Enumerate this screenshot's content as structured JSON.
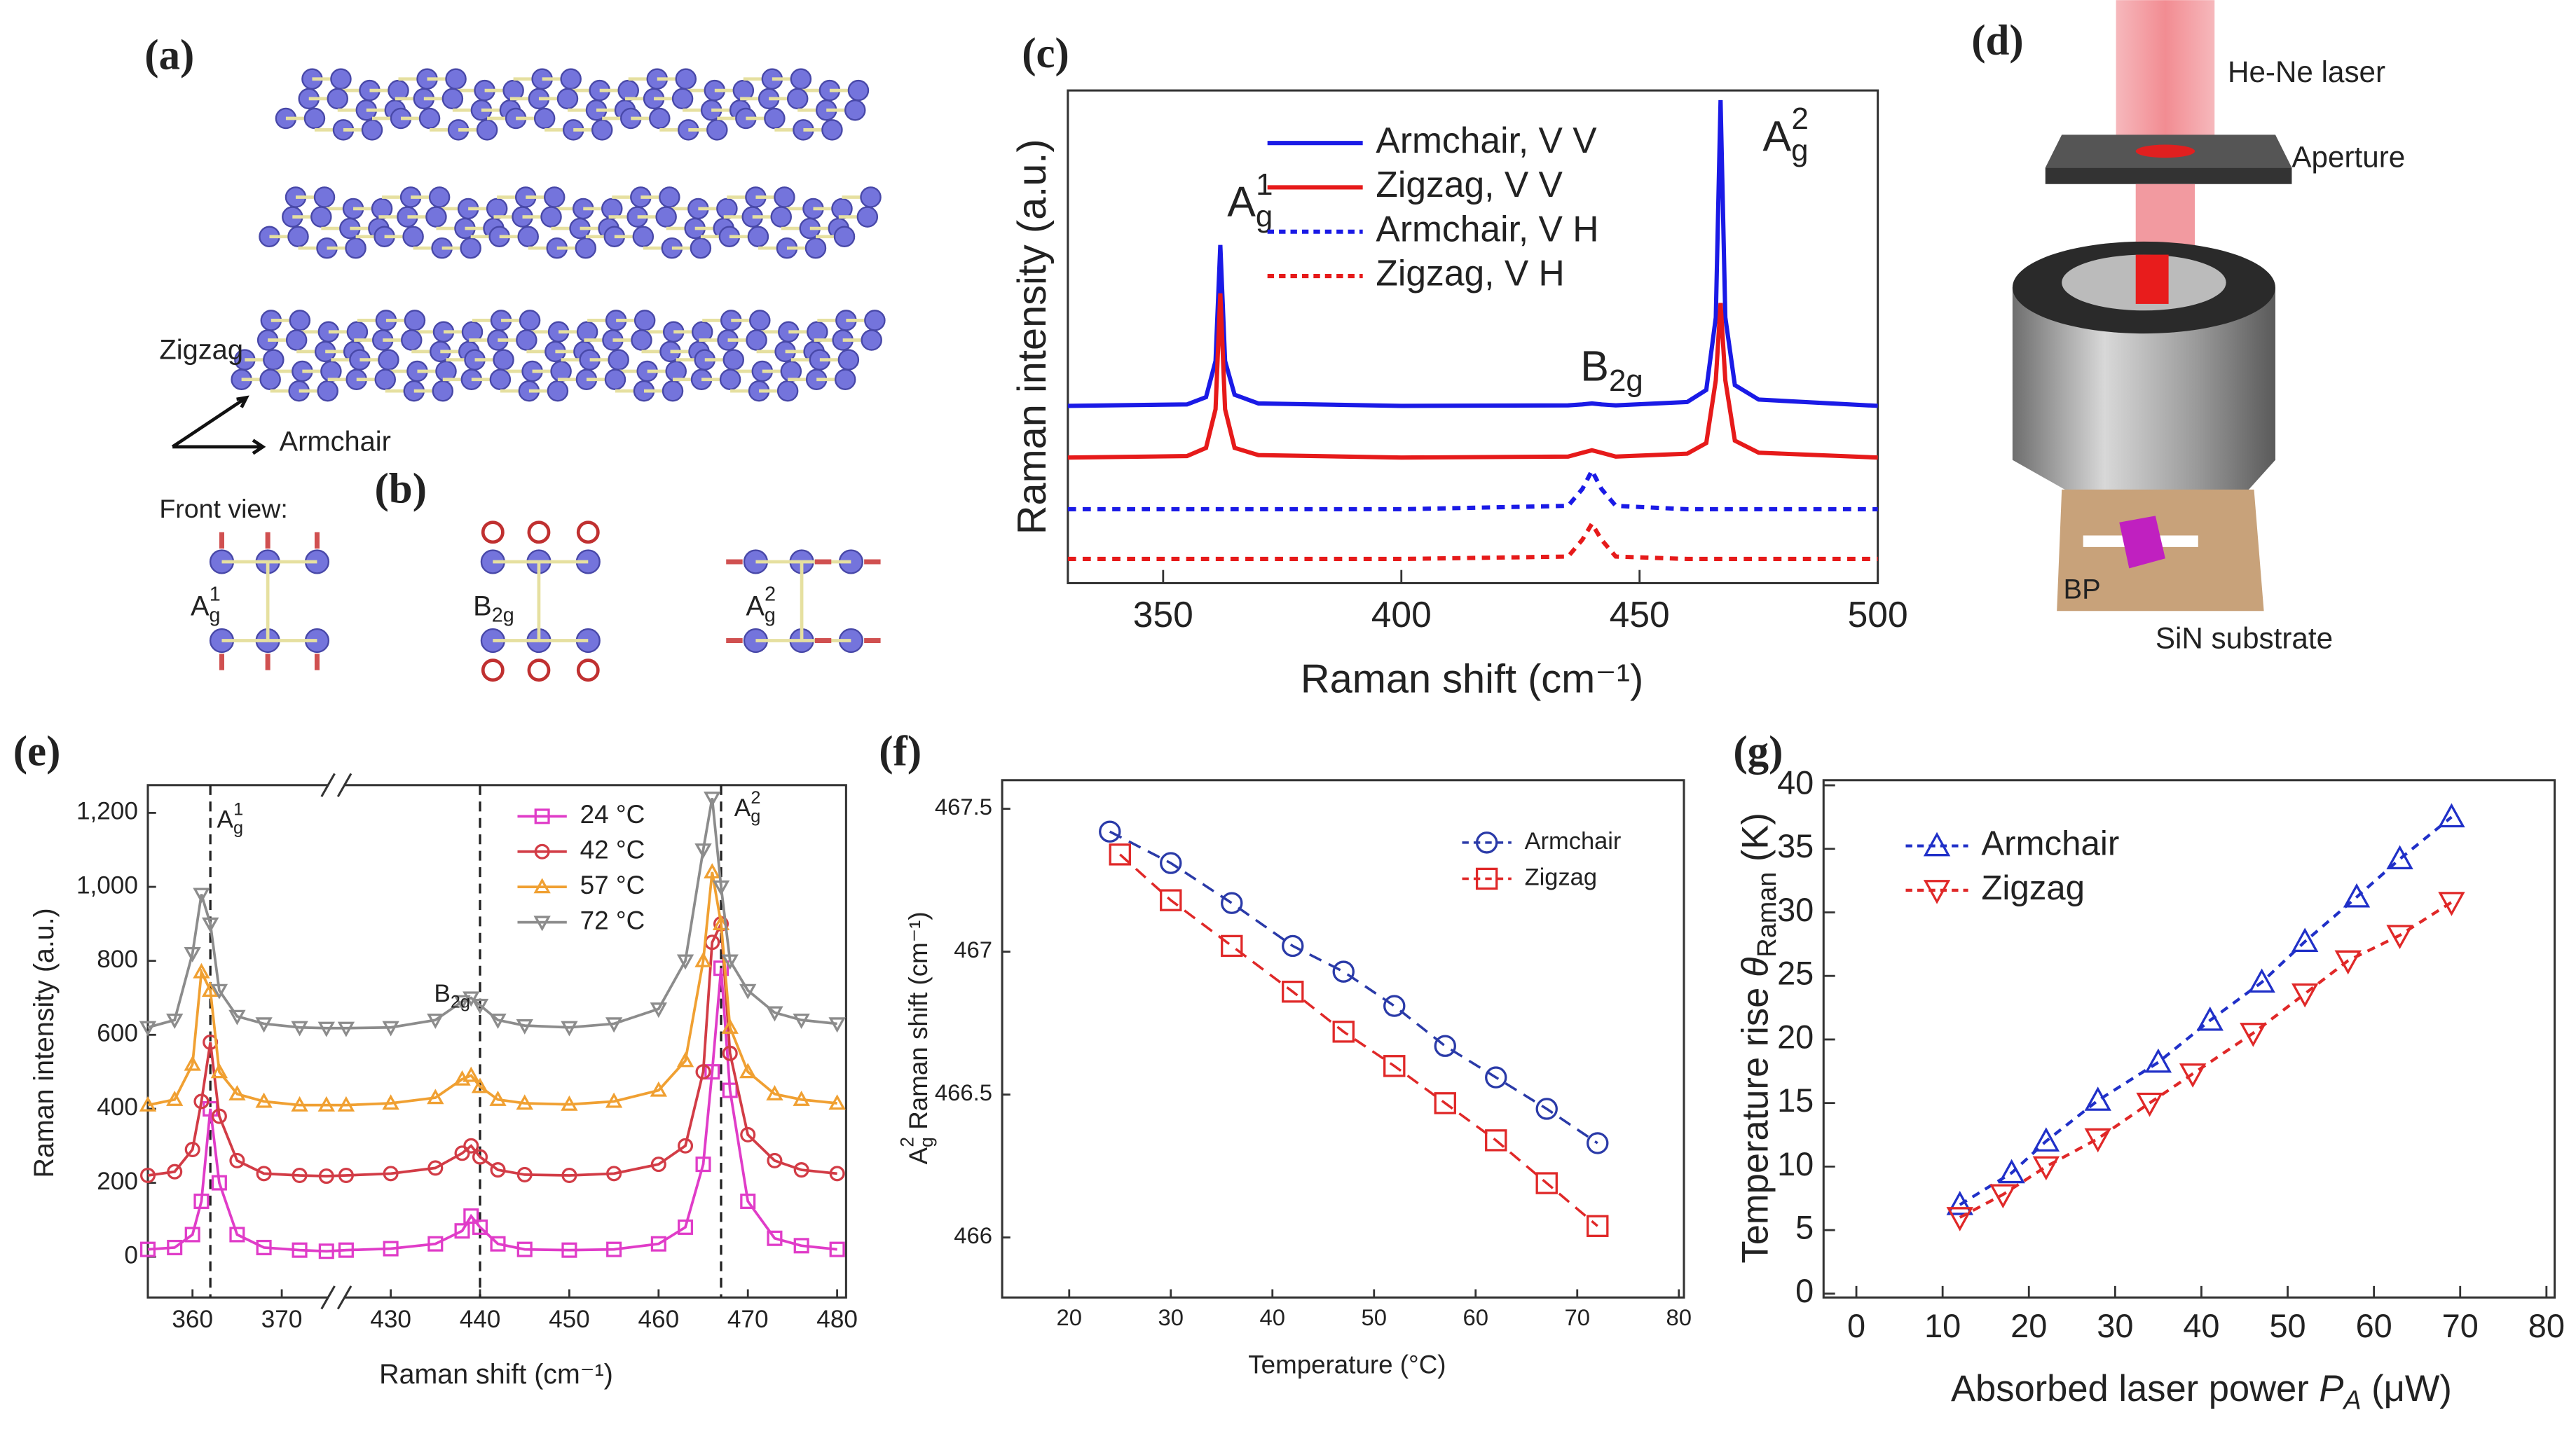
{
  "diagrams": {
    "a": {
      "label": "(a)",
      "zigzag": "Zigzag",
      "armchair": "Armchair"
    },
    "b": {
      "label": "(b)",
      "front_view": "Front view:",
      "modes": [
        [
          {
            "text": "A"
          },
          {
            "text": "g",
            "shift": "sub"
          },
          {
            "text": "1",
            "shift": "sup"
          }
        ],
        [
          {
            "text": "B"
          },
          {
            "text": "2g",
            "shift": "sub"
          }
        ],
        [
          {
            "text": "A"
          },
          {
            "text": "g",
            "shift": "sub"
          },
          {
            "text": "2",
            "shift": "sup"
          }
        ]
      ]
    },
    "d": {
      "label": "(d)",
      "laser": "He-Ne laser",
      "aperture": "Aperture",
      "bp": "BP",
      "substrate": "SiN substrate"
    }
  },
  "chart_data": [
    {
      "type": "line",
      "label": "(c)",
      "xlabel": "Raman shift (cm⁻¹)",
      "ylabel": "Raman intensity (a.u.)",
      "x": [
        330,
        355,
        359,
        361,
        362,
        363,
        365,
        370,
        400,
        435,
        438,
        440,
        442,
        445,
        460,
        464,
        466,
        467,
        468,
        470,
        475,
        500
      ],
      "xlim": [
        330,
        500
      ],
      "xticks": [
        350,
        400,
        450,
        500
      ],
      "ylim": [
        0,
        10.2
      ],
      "legend": "upper center",
      "series": [
        {
          "name": "Armchair, V V",
          "color": "#1a1ae6",
          "dash": false,
          "values": [
            3.67,
            3.7,
            3.85,
            4.6,
            7.0,
            4.6,
            3.9,
            3.72,
            3.67,
            3.68,
            3.7,
            3.72,
            3.7,
            3.68,
            3.75,
            4.0,
            5.5,
            10.0,
            5.5,
            4.1,
            3.8,
            3.67
          ]
        },
        {
          "name": "Zigzag, V V",
          "color": "#e61a1a",
          "dash": false,
          "values": [
            2.6,
            2.63,
            2.8,
            3.6,
            6.0,
            3.6,
            2.8,
            2.65,
            2.6,
            2.62,
            2.7,
            2.75,
            2.7,
            2.62,
            2.68,
            2.9,
            4.2,
            5.8,
            4.2,
            2.95,
            2.7,
            2.6
          ]
        },
        {
          "name": "Armchair, V H",
          "color": "#1a1ae6",
          "dash": true,
          "values": [
            1.53,
            1.53,
            1.53,
            1.53,
            1.53,
            1.53,
            1.53,
            1.53,
            1.53,
            1.6,
            1.95,
            2.33,
            1.95,
            1.6,
            1.53,
            1.53,
            1.53,
            1.53,
            1.53,
            1.53,
            1.53,
            1.53
          ]
        },
        {
          "name": "Zigzag, V H",
          "color": "#e61a1a",
          "dash": true,
          "values": [
            0.5,
            0.5,
            0.5,
            0.5,
            0.5,
            0.5,
            0.5,
            0.5,
            0.5,
            0.55,
            0.9,
            1.23,
            0.9,
            0.55,
            0.5,
            0.5,
            0.5,
            0.5,
            0.5,
            0.5,
            0.5,
            0.5
          ]
        }
      ],
      "annotations": [
        [
          {
            "text": "A"
          },
          {
            "text": "g",
            "shift": "sub"
          },
          {
            "text": "1",
            "shift": "sup"
          }
        ],
        [
          {
            "text": "A"
          },
          {
            "text": "g",
            "shift": "sub"
          },
          {
            "text": "2",
            "shift": "sup"
          }
        ],
        [
          {
            "text": "B"
          },
          {
            "text": "2g",
            "shift": "sub"
          }
        ]
      ]
    },
    {
      "type": "line",
      "label": "(e)",
      "xlabel": "Raman shift (cm⁻¹)",
      "ylabel": "Raman intensity (a.u.)",
      "x": [
        355,
        358,
        360,
        361,
        362,
        363,
        365,
        368,
        372,
        375,
        425,
        430,
        435,
        438,
        439,
        440,
        442,
        445,
        450,
        455,
        460,
        463,
        465,
        466,
        467,
        468,
        470,
        473,
        476,
        480
      ],
      "xlim": [
        355,
        481
      ],
      "xbreak": [
        375,
        425
      ],
      "xticks": [
        360,
        370,
        430,
        440,
        450,
        460,
        470,
        480
      ],
      "ylim": [
        -110,
        1275
      ],
      "yticks": [
        0,
        200,
        400,
        600,
        800,
        {
          "value": 1000,
          "label": "1,000"
        },
        {
          "value": 1200,
          "label": "1,200"
        }
      ],
      "legend": "upper right",
      "vlines": [
        362,
        440,
        467
      ],
      "series": [
        {
          "name": "24 °C",
          "color": "#e03cc8",
          "marker": "square",
          "values": [
            20,
            25,
            60,
            150,
            400,
            200,
            60,
            25,
            18,
            15,
            18,
            22,
            35,
            70,
            110,
            80,
            35,
            20,
            18,
            20,
            35,
            80,
            250,
            500,
            780,
            450,
            150,
            50,
            30,
            20
          ]
        },
        {
          "name": "42 °C",
          "color": "#d23c46",
          "marker": "circle",
          "values": [
            220,
            230,
            290,
            420,
            580,
            380,
            260,
            225,
            220,
            218,
            220,
            225,
            240,
            280,
            300,
            270,
            235,
            222,
            220,
            225,
            250,
            300,
            500,
            850,
            900,
            550,
            330,
            260,
            235,
            225
          ]
        },
        {
          "name": "57 °C",
          "color": "#f0a032",
          "marker": "triangle-up",
          "values": [
            410,
            425,
            520,
            770,
            720,
            500,
            440,
            420,
            410,
            410,
            410,
            415,
            430,
            480,
            490,
            460,
            425,
            415,
            412,
            420,
            450,
            530,
            800,
            1040,
            900,
            620,
            500,
            440,
            425,
            415
          ]
        },
        {
          "name": "72 °C",
          "color": "#8c8c8c",
          "marker": "triangle-down",
          "values": [
            620,
            640,
            820,
            980,
            900,
            720,
            650,
            630,
            620,
            618,
            618,
            620,
            640,
            690,
            700,
            680,
            640,
            625,
            620,
            630,
            670,
            800,
            1100,
            1240,
            1000,
            800,
            720,
            660,
            640,
            630
          ]
        }
      ],
      "annotations": [
        [
          {
            "text": "A"
          },
          {
            "text": "g",
            "shift": "sub"
          },
          {
            "text": "1",
            "shift": "sup"
          }
        ],
        [
          {
            "text": "B"
          },
          {
            "text": "2g",
            "shift": "sub"
          }
        ],
        [
          {
            "text": "A"
          },
          {
            "text": "g",
            "shift": "sub"
          },
          {
            "text": "2",
            "shift": "sup"
          }
        ]
      ]
    },
    {
      "type": "line",
      "label": "(f)",
      "xlabel": "Temperature (°C)",
      "ylabel": [
        {
          "text": "A"
        },
        {
          "text": "g",
          "shift": "sub"
        },
        {
          "text": "2",
          "shift": "sup"
        },
        {
          "text": " Raman shift (cm⁻¹)"
        }
      ],
      "xlim": [
        13.4,
        80.5
      ],
      "xticks": [
        20,
        30,
        40,
        50,
        60,
        70,
        80
      ],
      "ylim": [
        465.79,
        467.6
      ],
      "yticks": [
        466,
        466.5,
        467,
        467.5
      ],
      "legend": "upper right",
      "series": [
        {
          "name": "Armchair",
          "color": "#2a3aa8",
          "marker": "circle",
          "dash": true,
          "x": [
            24,
            30,
            36,
            42,
            47,
            52,
            57,
            62,
            67,
            72
          ],
          "values": [
            467.42,
            467.31,
            467.17,
            467.02,
            466.93,
            466.81,
            466.67,
            466.56,
            466.45,
            466.33
          ]
        },
        {
          "name": "Zigzag",
          "color": "#e02828",
          "marker": "square",
          "dash": true,
          "x": [
            25,
            30,
            36,
            42,
            47,
            52,
            57,
            62,
            67,
            72
          ],
          "values": [
            467.34,
            467.18,
            467.02,
            466.86,
            466.72,
            466.6,
            466.47,
            466.34,
            466.19,
            466.04
          ]
        }
      ]
    },
    {
      "type": "line",
      "label": "(g)",
      "xlabel": [
        {
          "text": "Absorbed laser power "
        },
        {
          "text": "P",
          "italic": true
        },
        {
          "text": "A",
          "shift": "sub",
          "italic": true
        },
        {
          "text": " (μW)"
        }
      ],
      "ylabel": [
        {
          "text": "Temperature rise "
        },
        {
          "text": "θ",
          "italic": true
        },
        {
          "text": "Raman",
          "shift": "sub"
        },
        {
          "text": " (K)"
        }
      ],
      "xlim": [
        -3.8,
        80.95
      ],
      "xticks": [
        0,
        10,
        20,
        30,
        40,
        50,
        60,
        70,
        80
      ],
      "ylim": [
        -0.3,
        40.4
      ],
      "yticks": [
        0,
        5,
        10,
        15,
        20,
        25,
        30,
        35,
        40
      ],
      "legend": "upper left",
      "series": [
        {
          "name": "Armchair",
          "color": "#2030c8",
          "marker": "triangle-up",
          "dash": true,
          "x": [
            12,
            18,
            22,
            28,
            35,
            41,
            47,
            52,
            58,
            63,
            69
          ],
          "values": [
            7,
            9.5,
            12,
            15.2,
            18.2,
            21.5,
            24.5,
            27.7,
            31.2,
            34.2,
            37.5
          ]
        },
        {
          "name": "Zigzag",
          "color": "#e02828",
          "marker": "triangle-down",
          "dash": true,
          "x": [
            12,
            17,
            22,
            28,
            34,
            39,
            46,
            52,
            57,
            63,
            69
          ],
          "values": [
            6,
            7.8,
            10,
            12.2,
            15,
            17.3,
            20.5,
            23.6,
            26.2,
            28.2,
            30.8
          ]
        }
      ]
    }
  ]
}
